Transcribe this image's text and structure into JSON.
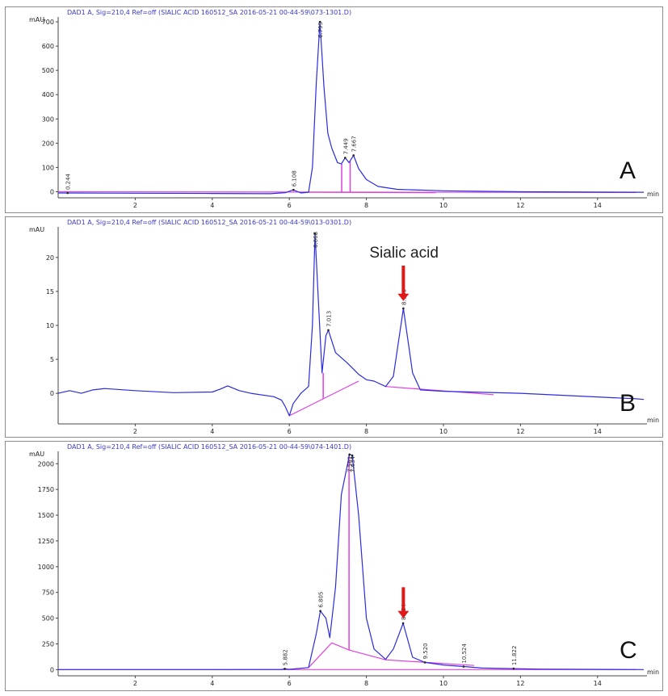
{
  "colors": {
    "trace": "#2b2be0",
    "baseline": "#e040e0",
    "arrow": "#e01818",
    "header": "#3a3ac8"
  },
  "chart_data": [
    {
      "type": "line",
      "panel_letter": "A",
      "header": "DAD1 A, Sig=210,4 Ref=off (SIALIC ACID 160512_SA 2016-05-21 00-44-59\\073-1301.D)",
      "ylabel": "mAU",
      "xlabel": "min",
      "xlim": [
        0,
        15.2
      ],
      "ylim": [
        -25,
        720
      ],
      "xticks": [
        2,
        4,
        6,
        8,
        10,
        12,
        14
      ],
      "yticks": [
        0,
        100,
        200,
        300,
        400,
        500,
        600,
        700
      ],
      "peak_labels": [
        {
          "x": 0.244,
          "text": "0.244"
        },
        {
          "x": 6.108,
          "text": "6.108"
        },
        {
          "x": 6.795,
          "text": "6.795"
        },
        {
          "x": 7.449,
          "text": "7.449"
        },
        {
          "x": 7.667,
          "text": "7.667"
        }
      ],
      "trace": [
        [
          0,
          -5
        ],
        [
          2,
          -6
        ],
        [
          4,
          -7
        ],
        [
          5.5,
          -8
        ],
        [
          5.9,
          -4
        ],
        [
          6.1,
          8
        ],
        [
          6.3,
          -5
        ],
        [
          6.5,
          -2
        ],
        [
          6.6,
          100
        ],
        [
          6.7,
          450
        ],
        [
          6.795,
          700
        ],
        [
          6.9,
          430
        ],
        [
          7.0,
          240
        ],
        [
          7.1,
          180
        ],
        [
          7.25,
          120
        ],
        [
          7.35,
          115
        ],
        [
          7.449,
          140
        ],
        [
          7.55,
          120
        ],
        [
          7.667,
          150
        ],
        [
          7.8,
          95
        ],
        [
          8.0,
          50
        ],
        [
          8.3,
          22
        ],
        [
          8.8,
          10
        ],
        [
          10,
          4
        ],
        [
          12,
          0
        ],
        [
          15.2,
          -2
        ]
      ],
      "baseline_segments": [
        [
          [
            0,
            0
          ],
          [
            15,
            -3
          ]
        ],
        [
          [
            6.5,
            -2
          ],
          [
            9.8,
            -4
          ]
        ]
      ],
      "drop_lines": [
        [
          7.36,
          115
        ],
        [
          7.58,
          125
        ]
      ]
    },
    {
      "type": "line",
      "panel_letter": "B",
      "header": "DAD1 A, Sig=210,4 Ref=off (SIALIC ACID 160512_SA 2016-05-21 00-44-59\\013-0301.D)",
      "ylabel": "mAU",
      "xlabel": "min",
      "xlim": [
        0,
        15.2
      ],
      "ylim": [
        -4.5,
        24.5
      ],
      "xticks": [
        2,
        4,
        6,
        8,
        10,
        12,
        14
      ],
      "yticks": [
        0,
        5,
        10,
        15,
        20
      ],
      "annotation": "Sialic acid",
      "peak_labels": [
        {
          "x": 6.668,
          "text": "6.668"
        },
        {
          "x": 7.013,
          "text": "7.013"
        },
        {
          "x": 8.96,
          "text": "8.960"
        }
      ],
      "trace": [
        [
          0,
          0
        ],
        [
          0.3,
          0.4
        ],
        [
          0.6,
          0
        ],
        [
          0.9,
          0.5
        ],
        [
          1.2,
          0.7
        ],
        [
          2,
          0.4
        ],
        [
          3,
          0.1
        ],
        [
          4,
          0.2
        ],
        [
          4.2,
          0.6
        ],
        [
          4.4,
          1.1
        ],
        [
          4.7,
          0.4
        ],
        [
          5,
          0
        ],
        [
          5.6,
          -0.5
        ],
        [
          5.8,
          -1.0
        ],
        [
          5.9,
          -2.0
        ],
        [
          6.0,
          -3.3
        ],
        [
          6.1,
          -1.5
        ],
        [
          6.3,
          0
        ],
        [
          6.5,
          1.0
        ],
        [
          6.6,
          10
        ],
        [
          6.668,
          23.5
        ],
        [
          6.75,
          14
        ],
        [
          6.85,
          3
        ],
        [
          6.95,
          8.5
        ],
        [
          7.013,
          9.3
        ],
        [
          7.2,
          6
        ],
        [
          7.5,
          4.5
        ],
        [
          7.8,
          2.8
        ],
        [
          8.0,
          2.0
        ],
        [
          8.2,
          1.8
        ],
        [
          8.5,
          1.0
        ],
        [
          8.7,
          2.5
        ],
        [
          8.96,
          12.5
        ],
        [
          9.2,
          3
        ],
        [
          9.4,
          0.5
        ],
        [
          10,
          0.3
        ],
        [
          12,
          0
        ],
        [
          15,
          -0.8
        ],
        [
          15.2,
          -0.9
        ]
      ],
      "baseline_segments": [
        [
          [
            6.0,
            -3.3
          ],
          [
            7.8,
            1.8
          ]
        ],
        [
          [
            8.5,
            1.0
          ],
          [
            11.3,
            -0.2
          ]
        ]
      ],
      "drop_lines": [
        [
          6.88,
          3
        ]
      ]
    },
    {
      "type": "line",
      "panel_letter": "C",
      "header": "DAD1 A, Sig=210,4 Ref=off (SIALIC ACID 160512_SA 2016-05-21 00-44-59\\074-1401.D)",
      "ylabel": "mAU",
      "xlabel": "min",
      "xlim": [
        0,
        15.2
      ],
      "ylim": [
        -60,
        2120
      ],
      "xticks": [
        2,
        4,
        6,
        8,
        10,
        12,
        14
      ],
      "yticks": [
        0,
        250,
        500,
        750,
        1000,
        1250,
        1500,
        1750,
        2000
      ],
      "peak_labels": [
        {
          "x": 5.882,
          "text": "5.882"
        },
        {
          "x": 6.805,
          "text": "6.805"
        },
        {
          "x": 7.562,
          "text": "7.562"
        },
        {
          "x": 7.634,
          "text": "7.634"
        },
        {
          "x": 8.954,
          "text": "8.954"
        },
        {
          "x": 9.52,
          "text": "9.520"
        },
        {
          "x": 10.524,
          "text": "10.524"
        },
        {
          "x": 11.822,
          "text": "11.822"
        }
      ],
      "trace": [
        [
          0,
          0
        ],
        [
          4,
          0
        ],
        [
          5.8,
          2
        ],
        [
          5.882,
          8
        ],
        [
          6.0,
          3
        ],
        [
          6.5,
          20
        ],
        [
          6.7,
          350
        ],
        [
          6.805,
          570
        ],
        [
          6.95,
          500
        ],
        [
          7.05,
          310
        ],
        [
          7.2,
          800
        ],
        [
          7.35,
          1700
        ],
        [
          7.562,
          2090
        ],
        [
          7.634,
          2080
        ],
        [
          7.8,
          1500
        ],
        [
          8.0,
          500
        ],
        [
          8.2,
          200
        ],
        [
          8.5,
          100
        ],
        [
          8.7,
          200
        ],
        [
          8.954,
          450
        ],
        [
          9.2,
          120
        ],
        [
          9.52,
          70
        ],
        [
          10,
          45
        ],
        [
          10.524,
          30
        ],
        [
          11,
          15
        ],
        [
          11.822,
          10
        ],
        [
          12.5,
          5
        ],
        [
          15.2,
          0
        ]
      ],
      "baseline_segments": [
        [
          [
            0,
            0
          ],
          [
            15,
            0
          ]
        ],
        [
          [
            6.5,
            20
          ],
          [
            7.1,
            260
          ],
          [
            7.55,
            190
          ],
          [
            8.5,
            95
          ],
          [
            10.8,
            40
          ]
        ]
      ],
      "drop_lines": [
        [
          7.55,
          2090
        ]
      ]
    }
  ]
}
